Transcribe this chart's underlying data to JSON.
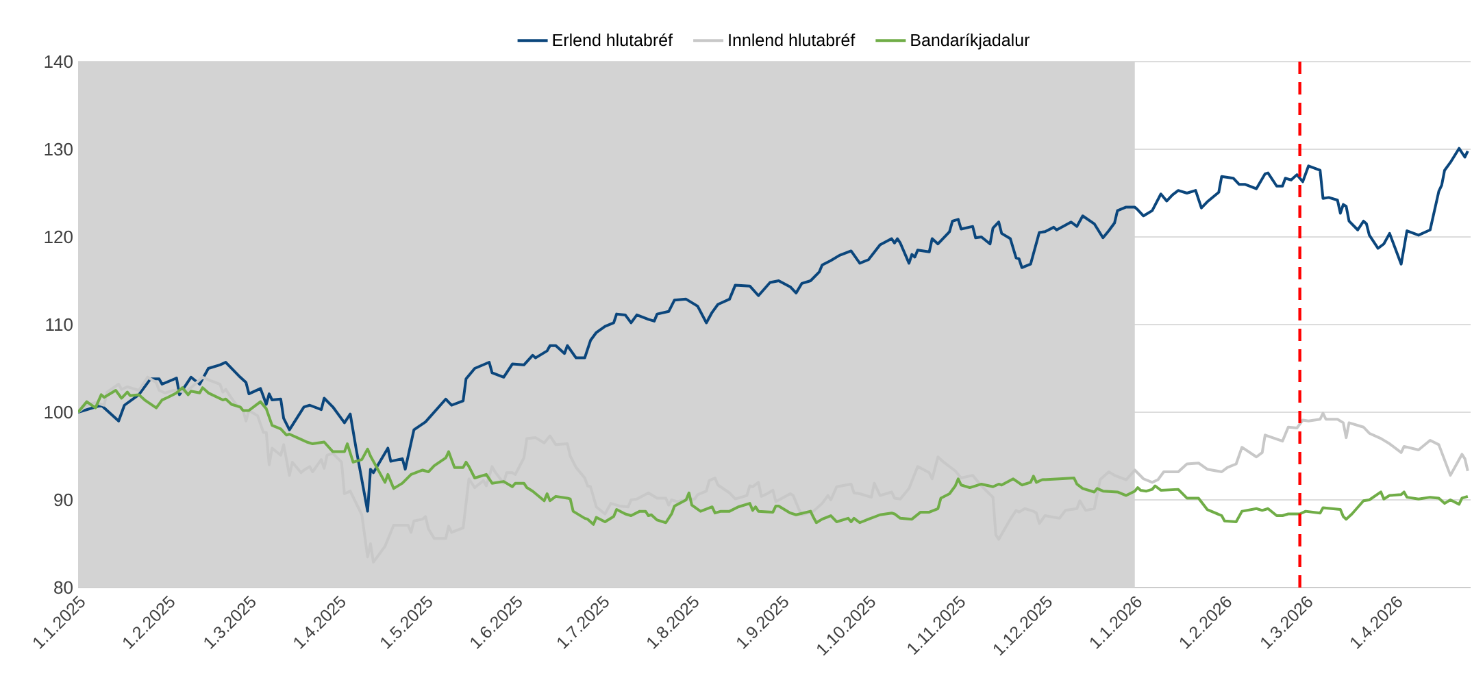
{
  "chart_data": {
    "type": "line",
    "xlim": [
      "2025-01-01",
      "2026-04-27"
    ],
    "xticks": [
      {
        "value": "2025-01-01",
        "label": "1.1.2025"
      },
      {
        "value": "2025-02-01",
        "label": "1.2.2025"
      },
      {
        "value": "2025-03-01",
        "label": "1.3.2025"
      },
      {
        "value": "2025-04-01",
        "label": "1.4.2025"
      },
      {
        "value": "2025-05-01",
        "label": "1.5.2025"
      },
      {
        "value": "2025-06-01",
        "label": "1.6.2025"
      },
      {
        "value": "2025-07-01",
        "label": "1.7.2025"
      },
      {
        "value": "2025-08-01",
        "label": "1.8.2025"
      },
      {
        "value": "2025-09-01",
        "label": "1.9.2025"
      },
      {
        "value": "2025-10-01",
        "label": "1.10.2025"
      },
      {
        "value": "2025-11-01",
        "label": "1.11.2025"
      },
      {
        "value": "2025-12-01",
        "label": "1.12.2025"
      },
      {
        "value": "2026-01-01",
        "label": "1.1.2026"
      },
      {
        "value": "2026-02-01",
        "label": "1.2.2026"
      },
      {
        "value": "2026-03-01",
        "label": "1.3.2026"
      },
      {
        "value": "2026-04-01",
        "label": "1.4.2026"
      }
    ],
    "ylim": [
      80,
      140
    ],
    "yticks": [
      80,
      90,
      100,
      110,
      120,
      130,
      140
    ],
    "grid": "y",
    "legend": "top",
    "line_style": "solid",
    "bands": [
      {
        "axis": "x",
        "from": "2025-01-01",
        "to": "2026-01-01",
        "color": "#d3d3d3"
      }
    ],
    "ref_lines": [
      {
        "axis": "x",
        "value": "2026-02-27",
        "color": "#ff0000",
        "line_style": "dashed"
      }
    ],
    "series": [
      {
        "name": "Erlend hlutabréf",
        "color": "#0b467c",
        "x": [
          "2025-01-01",
          "2025-01-09",
          "2025-01-15",
          "2025-01-17",
          "2025-01-22",
          "2025-01-26",
          "2025-01-29",
          "2025-01-30",
          "2025-02-04",
          "2025-02-05",
          "2025-02-09",
          "2025-02-12",
          "2025-02-15",
          "2025-02-19",
          "2025-02-21",
          "2025-02-26",
          "2025-02-28",
          "2025-03-01",
          "2025-03-05",
          "2025-03-07",
          "2025-03-08",
          "2025-03-09",
          "2025-03-12",
          "2025-03-13",
          "2025-03-15",
          "2025-03-20",
          "2025-03-22",
          "2025-03-26",
          "2025-03-27",
          "2025-03-30",
          "2025-04-03",
          "2025-04-05",
          "2025-04-07",
          "2025-04-11",
          "2025-04-12",
          "2025-04-13",
          "2025-04-18",
          "2025-04-19",
          "2025-04-23",
          "2025-04-24",
          "2025-04-27",
          "2025-05-01",
          "2025-05-08",
          "2025-05-10",
          "2025-05-14",
          "2025-05-15",
          "2025-05-18",
          "2025-05-23",
          "2025-05-24",
          "2025-05-28",
          "2025-05-31",
          "2025-06-04",
          "2025-06-07",
          "2025-06-08",
          "2025-06-12",
          "2025-06-13",
          "2025-06-15",
          "2025-06-18",
          "2025-06-19",
          "2025-06-22",
          "2025-06-25",
          "2025-06-27",
          "2025-06-29",
          "2025-07-02",
          "2025-07-05",
          "2025-07-06",
          "2025-07-09",
          "2025-07-11",
          "2025-07-13",
          "2025-07-17",
          "2025-07-19",
          "2025-07-20",
          "2025-07-24",
          "2025-07-26",
          "2025-07-30",
          "2025-08-03",
          "2025-08-06",
          "2025-08-08",
          "2025-08-10",
          "2025-08-14",
          "2025-08-16",
          "2025-08-21",
          "2025-08-24",
          "2025-08-28",
          "2025-08-31",
          "2025-09-04",
          "2025-09-06",
          "2025-09-08",
          "2025-09-11",
          "2025-09-14",
          "2025-09-15",
          "2025-09-18",
          "2025-09-21",
          "2025-09-25",
          "2025-09-28",
          "2025-10-01",
          "2025-10-05",
          "2025-10-09",
          "2025-10-10",
          "2025-10-11",
          "2025-10-12",
          "2025-10-15",
          "2025-10-16",
          "2025-10-17",
          "2025-10-18",
          "2025-10-22",
          "2025-10-23",
          "2025-10-25",
          "2025-10-29",
          "2025-10-30",
          "2025-11-01",
          "2025-11-02",
          "2025-11-06",
          "2025-11-07",
          "2025-11-09",
          "2025-11-12",
          "2025-11-13",
          "2025-11-15",
          "2025-11-16",
          "2025-11-19",
          "2025-11-21",
          "2025-11-22",
          "2025-11-23",
          "2025-11-26",
          "2025-11-29",
          "2025-12-01",
          "2025-12-04",
          "2025-12-05",
          "2025-12-10",
          "2025-12-12",
          "2025-12-14",
          "2025-12-18",
          "2025-12-21",
          "2025-12-23",
          "2025-12-25",
          "2025-12-26",
          "2025-12-29",
          "2026-01-01",
          "2026-01-02",
          "2026-01-04",
          "2026-01-07",
          "2026-01-10",
          "2026-01-12",
          "2026-01-14",
          "2026-01-16",
          "2026-01-19",
          "2026-01-22",
          "2026-01-24",
          "2026-01-26",
          "2026-01-30",
          "2026-01-31",
          "2026-02-04",
          "2026-02-06",
          "2026-02-08",
          "2026-02-12",
          "2026-02-15",
          "2026-02-16",
          "2026-02-19",
          "2026-02-21",
          "2026-02-22",
          "2026-02-24",
          "2026-02-26",
          "2026-02-28",
          "2026-03-02",
          "2026-03-06",
          "2026-03-07",
          "2026-03-09",
          "2026-03-12",
          "2026-03-13",
          "2026-03-14",
          "2026-03-15",
          "2026-03-16",
          "2026-03-19",
          "2026-03-21",
          "2026-03-22",
          "2026-03-23",
          "2026-03-26",
          "2026-03-28",
          "2026-03-30",
          "2026-04-03",
          "2026-04-05",
          "2026-04-09",
          "2026-04-13",
          "2026-04-16",
          "2026-04-17",
          "2026-04-18",
          "2026-04-20",
          "2026-04-23",
          "2026-04-25",
          "2026-04-26"
        ],
        "values": [
          100,
          100.8,
          99,
          100.8,
          102,
          103.8,
          103.8,
          103.2,
          103.9,
          102,
          104,
          103.2,
          105,
          105.4,
          105.7,
          104,
          103.4,
          102.1,
          102.7,
          100.9,
          102.1,
          101.4,
          101.5,
          99.3,
          98,
          100.6,
          100.8,
          100.3,
          101.6,
          100.6,
          98.8,
          99.8,
          95.9,
          88.7,
          93.5,
          93.1,
          95.9,
          94.4,
          94.7,
          93.5,
          98,
          98.9,
          101.5,
          100.8,
          101.3,
          103.8,
          105,
          105.7,
          104.5,
          104,
          105.5,
          105.4,
          106.5,
          106.2,
          107,
          107.6,
          107.6,
          106.7,
          107.6,
          106.2,
          106.2,
          108.2,
          109.1,
          109.8,
          110.2,
          111.2,
          111.1,
          110.2,
          111.1,
          110.6,
          110.4,
          111.2,
          111.5,
          112.8,
          112.9,
          112.1,
          110.2,
          111.4,
          112.3,
          112.9,
          114.5,
          114.4,
          113.3,
          114.8,
          115,
          114.3,
          113.6,
          114.7,
          115,
          116,
          116.8,
          117.3,
          117.9,
          118.4,
          117,
          117.4,
          119.1,
          119.8,
          119.3,
          119.8,
          119.3,
          117,
          118,
          117.7,
          118.5,
          118.3,
          119.8,
          119.2,
          120.6,
          121.8,
          122,
          120.9,
          121.2,
          119.9,
          120,
          119.2,
          121,
          121.7,
          120.4,
          119.8,
          117.6,
          117.5,
          116.5,
          116.9,
          120.5,
          120.6,
          121.1,
          120.8,
          121.7,
          121.2,
          122.4,
          121.5,
          119.9,
          120.7,
          121.6,
          123,
          123.4,
          123.4,
          123.1,
          122.4,
          123,
          124.9,
          124.1,
          124.8,
          125.3,
          125,
          125.3,
          123.3,
          124,
          125.1,
          126.9,
          126.7,
          126,
          126,
          125.5,
          127.2,
          127.3,
          125.8,
          125.8,
          126.7,
          126.5,
          127.1,
          126.3,
          128.1,
          127.6,
          124.4,
          124.5,
          124.2,
          122.7,
          123.7,
          123.5,
          121.8,
          120.8,
          121.8,
          121.5,
          120.2,
          118.7,
          119.2,
          120.4,
          116.9,
          120.7,
          120.2,
          120.8,
          125.2,
          125.9,
          127.6,
          128.5,
          130.1,
          129.1,
          129.8
        ]
      },
      {
        "name": "Innlend hlutabréf",
        "color": "#c8c8c8",
        "x": [
          "2025-01-01",
          "2025-01-04",
          "2025-01-07",
          "2025-01-10",
          "2025-01-11",
          "2025-01-15",
          "2025-01-16",
          "2025-01-18",
          "2025-01-22",
          "2025-01-25",
          "2025-01-28",
          "2025-01-29",
          "2025-01-31",
          "2025-02-03",
          "2025-02-07",
          "2025-02-09",
          "2025-02-13",
          "2025-02-15",
          "2025-02-19",
          "2025-02-20",
          "2025-02-21",
          "2025-02-23",
          "2025-02-25",
          "2025-02-27",
          "2025-02-28",
          "2025-03-01",
          "2025-03-04",
          "2025-03-06",
          "2025-03-07",
          "2025-03-08",
          "2025-03-09",
          "2025-03-12",
          "2025-03-13",
          "2025-03-15",
          "2025-03-16",
          "2025-03-19",
          "2025-03-20",
          "2025-03-22",
          "2025-03-23",
          "2025-03-26",
          "2025-03-27",
          "2025-03-28",
          "2025-03-30",
          "2025-04-02",
          "2025-04-03",
          "2025-04-05",
          "2025-04-09",
          "2025-04-11",
          "2025-04-12",
          "2025-04-13",
          "2025-04-17",
          "2025-04-20",
          "2025-04-25",
          "2025-04-26",
          "2025-04-27",
          "2025-04-30",
          "2025-05-01",
          "2025-05-02",
          "2025-05-04",
          "2025-05-08",
          "2025-05-09",
          "2025-05-10",
          "2025-05-14",
          "2025-05-16",
          "2025-05-18",
          "2025-05-21",
          "2025-05-22",
          "2025-05-24",
          "2025-05-25",
          "2025-05-28",
          "2025-05-29",
          "2025-05-31",
          "2025-06-01",
          "2025-06-04",
          "2025-06-05",
          "2025-06-08",
          "2025-06-11",
          "2025-06-13",
          "2025-06-15",
          "2025-06-19",
          "2025-06-20",
          "2025-06-22",
          "2025-06-25",
          "2025-06-26",
          "2025-06-27",
          "2025-06-29",
          "2025-07-02",
          "2025-07-04",
          "2025-07-07",
          "2025-07-10",
          "2025-07-11",
          "2025-07-13",
          "2025-07-17",
          "2025-07-20",
          "2025-07-23",
          "2025-07-24",
          "2025-07-25",
          "2025-07-27",
          "2025-07-31",
          "2025-08-02",
          "2025-08-03",
          "2025-08-06",
          "2025-08-07",
          "2025-08-09",
          "2025-08-10",
          "2025-08-14",
          "2025-08-16",
          "2025-08-20",
          "2025-08-21",
          "2025-08-22",
          "2025-08-24",
          "2025-08-25",
          "2025-08-27",
          "2025-08-29",
          "2025-08-30",
          "2025-09-04",
          "2025-09-05",
          "2025-09-07",
          "2025-09-08",
          "2025-09-12",
          "2025-09-15",
          "2025-09-17",
          "2025-09-18",
          "2025-09-20",
          "2025-09-25",
          "2025-09-26",
          "2025-09-28",
          "2025-10-02",
          "2025-10-03",
          "2025-10-05",
          "2025-10-09",
          "2025-10-10",
          "2025-10-12",
          "2025-10-15",
          "2025-10-18",
          "2025-10-22",
          "2025-10-23",
          "2025-10-25",
          "2025-10-27",
          "2025-10-31",
          "2025-11-02",
          "2025-11-06",
          "2025-11-09",
          "2025-11-13",
          "2025-11-14",
          "2025-11-15",
          "2025-11-19",
          "2025-11-21",
          "2025-11-22",
          "2025-11-24",
          "2025-11-27",
          "2025-11-28",
          "2025-11-29",
          "2025-12-01",
          "2025-12-06",
          "2025-12-08",
          "2025-12-12",
          "2025-12-13",
          "2025-12-15",
          "2025-12-18",
          "2025-12-20",
          "2025-12-23",
          "2025-12-25",
          "2025-12-29",
          "2026-01-01",
          "2026-01-04",
          "2026-01-07",
          "2026-01-09",
          "2026-01-11",
          "2026-01-16",
          "2026-01-19",
          "2026-01-23",
          "2026-01-26",
          "2026-01-31",
          "2026-02-02",
          "2026-02-05",
          "2026-02-07",
          "2026-02-12",
          "2026-02-14",
          "2026-02-15",
          "2026-02-21",
          "2026-02-23",
          "2026-02-26",
          "2026-02-28",
          "2026-03-02",
          "2026-03-06",
          "2026-03-07",
          "2026-03-08",
          "2026-03-12",
          "2026-03-14",
          "2026-03-15",
          "2026-03-16",
          "2026-03-20",
          "2026-03-21",
          "2026-03-23",
          "2026-03-27",
          "2026-03-30",
          "2026-04-03",
          "2026-04-04",
          "2026-04-09",
          "2026-04-13",
          "2026-04-16",
          "2026-04-20",
          "2026-04-24",
          "2026-04-25",
          "2026-04-26"
        ],
        "values": [
          100,
          100.8,
          101.1,
          100.8,
          102.3,
          103.2,
          102.6,
          102.9,
          102.5,
          104,
          103.4,
          102.5,
          102.2,
          102.5,
          102.3,
          102.8,
          104,
          103.7,
          103.2,
          102.3,
          102.6,
          101.6,
          100.7,
          100.2,
          99,
          100.2,
          99.6,
          97.7,
          97.7,
          94,
          95.9,
          95.1,
          96.3,
          92.8,
          94.3,
          93.1,
          93.4,
          93.8,
          93.2,
          94.6,
          93.6,
          95.1,
          95.3,
          94.3,
          90.7,
          91,
          88.3,
          83.5,
          85,
          82.9,
          84.7,
          87.1,
          87.1,
          86.3,
          87.6,
          87.8,
          88.1,
          86.7,
          85.6,
          85.6,
          87,
          86.3,
          86.8,
          92.4,
          91.4,
          92.2,
          91.6,
          93.8,
          93.2,
          91.9,
          93.1,
          93.1,
          92.9,
          94.8,
          97,
          97.1,
          96.5,
          97.3,
          96.3,
          96.4,
          95,
          93.7,
          92.5,
          91.6,
          91.5,
          89.2,
          88.4,
          89.6,
          89.3,
          89.2,
          90,
          90.1,
          90.8,
          90.2,
          90.2,
          89.4,
          90,
          89.8,
          90.1,
          90.1,
          90.6,
          91,
          92.2,
          92.5,
          91.7,
          90.8,
          90.1,
          90.5,
          91.6,
          91.5,
          92,
          90.4,
          90.7,
          91.1,
          89.8,
          90.7,
          90.5,
          88.9,
          88.3,
          88.7,
          89.6,
          90.5,
          90,
          91.5,
          91.8,
          90.8,
          90.7,
          90.3,
          91.9,
          90.5,
          90.9,
          90.2,
          90.1,
          91.3,
          93.8,
          93.1,
          92.4,
          94.9,
          94.3,
          93.3,
          92.5,
          92.8,
          91.6,
          90.3,
          86,
          85.5,
          87.8,
          88.8,
          88.6,
          89,
          88.7,
          88.5,
          87.3,
          88.2,
          87.9,
          88.8,
          89,
          89.9,
          88.8,
          89,
          92.3,
          93.2,
          92.8,
          92.3,
          93.4,
          92.4,
          92,
          92.3,
          93.2,
          93.2,
          94.1,
          94.2,
          93.5,
          93.2,
          93.7,
          94.1,
          96,
          94.9,
          95.4,
          97.4,
          96.7,
          98.3,
          98.2,
          99.1,
          99,
          99.2,
          99.9,
          99.2,
          99.2,
          98.8,
          97.1,
          98.8,
          98.4,
          98.3,
          97.6,
          97,
          96.4,
          95.4,
          96.1,
          95.7,
          96.8,
          96.3,
          92.8,
          95.2,
          94.7,
          93.3
        ]
      },
      {
        "name": "Bandaríkjadalur",
        "color": "#70ad47",
        "x": [
          "2025-01-01",
          "2025-01-04",
          "2025-01-07",
          "2025-01-09",
          "2025-01-10",
          "2025-01-14",
          "2025-01-16",
          "2025-01-18",
          "2025-01-19",
          "2025-01-22",
          "2025-01-24",
          "2025-01-28",
          "2025-01-30",
          "2025-02-01",
          "2025-02-04",
          "2025-02-06",
          "2025-02-08",
          "2025-02-09",
          "2025-02-12",
          "2025-02-13",
          "2025-02-15",
          "2025-02-20",
          "2025-02-21",
          "2025-02-23",
          "2025-02-26",
          "2025-02-27",
          "2025-03-01",
          "2025-03-05",
          "2025-03-07",
          "2025-03-09",
          "2025-03-12",
          "2025-03-14",
          "2025-03-15",
          "2025-03-19",
          "2025-03-21",
          "2025-03-23",
          "2025-03-27",
          "2025-03-30",
          "2025-04-03",
          "2025-04-04",
          "2025-04-06",
          "2025-04-09",
          "2025-04-11",
          "2025-04-12",
          "2025-04-17",
          "2025-04-18",
          "2025-04-20",
          "2025-04-23",
          "2025-04-26",
          "2025-04-30",
          "2025-05-02",
          "2025-05-04",
          "2025-05-08",
          "2025-05-09",
          "2025-05-11",
          "2025-05-14",
          "2025-05-15",
          "2025-05-16",
          "2025-05-18",
          "2025-05-21",
          "2025-05-22",
          "2025-05-24",
          "2025-05-28",
          "2025-05-31",
          "2025-06-01",
          "2025-06-04",
          "2025-06-05",
          "2025-06-07",
          "2025-06-11",
          "2025-06-12",
          "2025-06-13",
          "2025-06-15",
          "2025-06-19",
          "2025-06-20",
          "2025-06-21",
          "2025-06-25",
          "2025-06-26",
          "2025-06-28",
          "2025-06-29",
          "2025-07-02",
          "2025-07-05",
          "2025-07-06",
          "2025-07-09",
          "2025-07-11",
          "2025-07-14",
          "2025-07-16",
          "2025-07-17",
          "2025-07-18",
          "2025-07-20",
          "2025-07-23",
          "2025-07-25",
          "2025-07-26",
          "2025-07-30",
          "2025-07-31",
          "2025-08-01",
          "2025-08-04",
          "2025-08-08",
          "2025-08-09",
          "2025-08-11",
          "2025-08-14",
          "2025-08-17",
          "2025-08-21",
          "2025-08-22",
          "2025-08-23",
          "2025-08-24",
          "2025-08-29",
          "2025-08-30",
          "2025-08-31",
          "2025-09-04",
          "2025-09-06",
          "2025-09-11",
          "2025-09-12",
          "2025-09-13",
          "2025-09-15",
          "2025-09-18",
          "2025-09-20",
          "2025-09-24",
          "2025-09-25",
          "2025-09-26",
          "2025-09-28",
          "2025-10-01",
          "2025-10-05",
          "2025-10-09",
          "2025-10-10",
          "2025-10-12",
          "2025-10-16",
          "2025-10-19",
          "2025-10-22",
          "2025-10-25",
          "2025-10-26",
          "2025-10-29",
          "2025-10-31",
          "2025-11-01",
          "2025-11-02",
          "2025-11-05",
          "2025-11-09",
          "2025-11-13",
          "2025-11-15",
          "2025-11-16",
          "2025-11-20",
          "2025-11-23",
          "2025-11-26",
          "2025-11-27",
          "2025-11-28",
          "2025-11-30",
          "2025-12-06",
          "2025-12-11",
          "2025-12-12",
          "2025-12-14",
          "2025-12-18",
          "2025-12-19",
          "2025-12-21",
          "2025-12-26",
          "2025-12-29",
          "2026-01-01",
          "2026-01-02",
          "2026-01-03",
          "2026-01-05",
          "2026-01-07",
          "2026-01-08",
          "2026-01-10",
          "2026-01-16",
          "2026-01-19",
          "2026-01-23",
          "2026-01-26",
          "2026-01-31",
          "2026-02-01",
          "2026-02-05",
          "2026-02-07",
          "2026-02-12",
          "2026-02-14",
          "2026-02-16",
          "2026-02-19",
          "2026-02-21",
          "2026-02-23",
          "2026-02-27",
          "2026-03-01",
          "2026-03-06",
          "2026-03-07",
          "2026-03-13",
          "2026-03-14",
          "2026-03-15",
          "2026-03-17",
          "2026-03-21",
          "2026-03-23",
          "2026-03-27",
          "2026-03-28",
          "2026-03-30",
          "2026-04-03",
          "2026-04-04",
          "2026-04-05",
          "2026-04-09",
          "2026-04-13",
          "2026-04-16",
          "2026-04-18",
          "2026-04-20",
          "2026-04-23",
          "2026-04-24",
          "2026-04-26"
        ],
        "values": [
          100,
          101.2,
          100.5,
          102,
          101.7,
          102.5,
          101.6,
          102.3,
          101.9,
          102,
          101.4,
          100.5,
          101.4,
          101.7,
          102.2,
          102.8,
          102,
          102.4,
          102.2,
          102.8,
          102.2,
          101.4,
          101.5,
          100.9,
          100.6,
          100.2,
          100.2,
          101.2,
          100.4,
          98.5,
          98.1,
          97.4,
          97.5,
          96.9,
          96.6,
          96.4,
          96.6,
          95.5,
          95.5,
          96.4,
          94.3,
          94.6,
          95.8,
          95,
          92,
          92.9,
          91.3,
          91.9,
          92.9,
          93.4,
          93.2,
          93.9,
          94.8,
          95.5,
          93.7,
          93.7,
          94.3,
          93.8,
          92.5,
          92.8,
          92.9,
          91.9,
          92.1,
          91.5,
          91.9,
          91.9,
          91.4,
          91,
          89.9,
          90.7,
          89.9,
          90.4,
          90.2,
          90.1,
          88.7,
          87.9,
          87.8,
          87.2,
          88,
          87.5,
          88.1,
          88.9,
          88.4,
          88.2,
          88.7,
          88.7,
          88.2,
          88.3,
          87.7,
          87.4,
          88.4,
          89.3,
          90,
          90.8,
          89.4,
          88.7,
          89.2,
          88.5,
          88.7,
          88.7,
          89.2,
          89.6,
          88.8,
          89.2,
          88.7,
          88.6,
          89.3,
          89.3,
          88.5,
          88.3,
          88.7,
          88,
          87.4,
          87.8,
          88.2,
          87.5,
          87.9,
          87.5,
          87.9,
          87.4,
          87.8,
          88.3,
          88.5,
          88.4,
          87.9,
          87.8,
          88.6,
          88.6,
          89,
          90.2,
          90.7,
          91.6,
          92.4,
          91.7,
          91.4,
          91.8,
          91.5,
          91.8,
          91.7,
          92.4,
          91.7,
          92,
          92.7,
          92,
          92.3,
          92.4,
          92.5,
          91.8,
          91.3,
          90.9,
          91.3,
          91,
          90.9,
          90.5,
          91,
          91.4,
          91.1,
          91,
          91.2,
          91.6,
          91.1,
          91.2,
          90.2,
          90.2,
          88.9,
          88.2,
          87.6,
          87.5,
          88.7,
          89,
          88.8,
          89,
          88.2,
          88.2,
          88.4,
          88.4,
          88.7,
          88.5,
          89.1,
          88.9,
          88.1,
          87.8,
          88.4,
          89.9,
          90,
          90.9,
          90.1,
          90.5,
          90.6,
          90.9,
          90.3,
          90.1,
          90.3,
          90.2,
          89.6,
          90,
          89.5,
          90.2,
          90.4
        ]
      }
    ]
  }
}
